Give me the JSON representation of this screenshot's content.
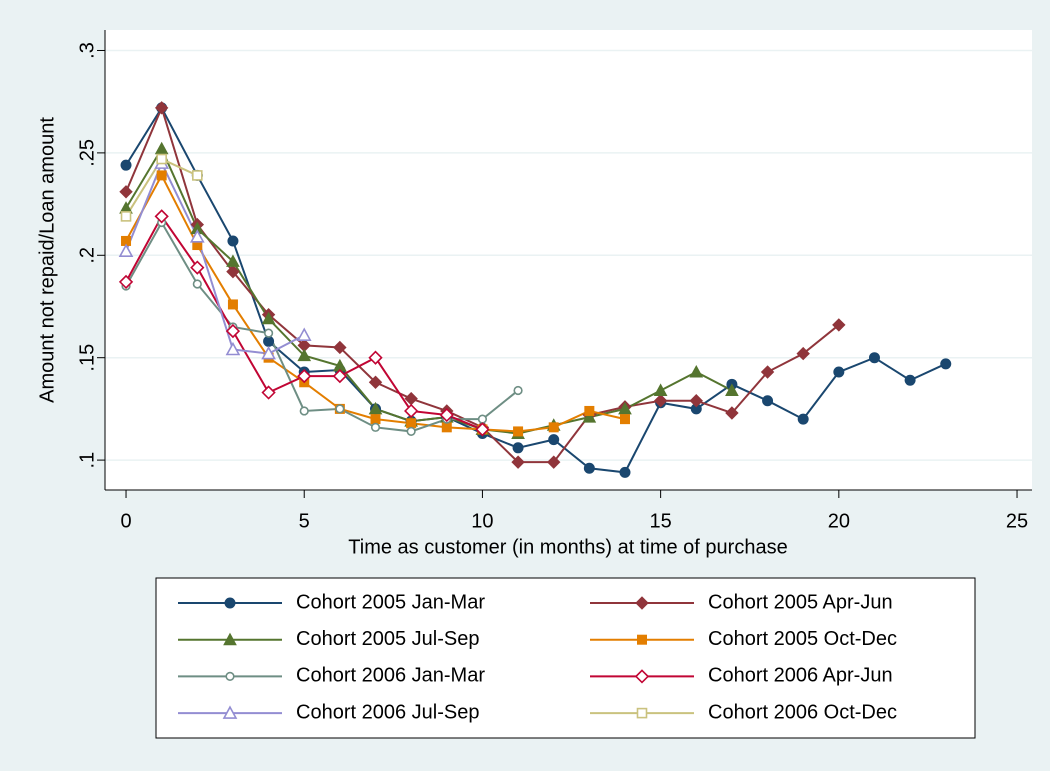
{
  "chart_data": {
    "type": "line",
    "x_label": "Time as customer (in months) at time of purchase",
    "y_label": "Amount not repaid/Loan amount",
    "x": [
      0,
      1,
      2,
      3,
      4,
      5,
      6,
      7,
      8,
      9,
      10,
      11,
      12,
      13,
      14,
      15,
      16,
      17,
      18,
      19,
      20,
      21,
      22,
      23
    ],
    "xlim": [
      -0.59,
      25.42
    ],
    "xticks": [
      0,
      5,
      10,
      15,
      20,
      25
    ],
    "ylim": [
      0.0854,
      0.31
    ],
    "yticks": [
      {
        "value": 0.1,
        "label": ".1"
      },
      {
        "value": 0.15,
        "label": ".15"
      },
      {
        "value": 0.2,
        "label": ".2"
      },
      {
        "value": 0.25,
        "label": ".25"
      },
      {
        "value": 0.3,
        "label": ".3"
      }
    ],
    "grid": true,
    "series": [
      {
        "name": "Cohort 2005 Jan-Mar",
        "color": "#1a476f",
        "marker": "circle",
        "hollow": false,
        "values": [
          0.244,
          0.272,
          0.239,
          0.207,
          0.158,
          0.143,
          0.144,
          0.125,
          0.119,
          0.121,
          0.113,
          0.106,
          0.11,
          0.096,
          0.094,
          0.128,
          0.125,
          0.137,
          0.129,
          0.12,
          0.143,
          0.15,
          0.139,
          0.147
        ]
      },
      {
        "name": "Cohort 2005 Apr-Jun",
        "color": "#90353b",
        "marker": "diamond",
        "hollow": false,
        "values": [
          0.231,
          0.272,
          0.215,
          0.192,
          0.171,
          0.156,
          0.155,
          0.138,
          0.13,
          0.124,
          0.116,
          0.099,
          0.099,
          0.122,
          0.126,
          0.129,
          0.129,
          0.123,
          0.143,
          0.152,
          0.166,
          null,
          null,
          null
        ]
      },
      {
        "name": "Cohort 2005 Jul-Sep",
        "color": "#55752f",
        "marker": "triangle",
        "hollow": false,
        "values": [
          0.223,
          0.252,
          0.213,
          0.197,
          0.169,
          0.151,
          0.146,
          0.125,
          0.119,
          0.121,
          0.115,
          0.113,
          0.117,
          0.121,
          0.125,
          0.134,
          0.143,
          0.134,
          null,
          null,
          null,
          null,
          null,
          null
        ]
      },
      {
        "name": "Cohort 2005 Oct-Dec",
        "color": "#e37e00",
        "marker": "square",
        "hollow": false,
        "values": [
          0.207,
          0.239,
          0.205,
          0.176,
          0.15,
          0.138,
          0.125,
          0.12,
          0.118,
          0.116,
          0.115,
          0.114,
          0.116,
          0.124,
          0.12,
          null,
          null,
          null,
          null,
          null,
          null,
          null,
          null,
          null
        ]
      },
      {
        "name": "Cohort 2006 Jan-Mar",
        "color": "#6e8e84",
        "marker": "circle",
        "hollow": true,
        "values": [
          0.185,
          0.216,
          0.186,
          0.165,
          0.162,
          0.124,
          0.125,
          0.116,
          0.114,
          0.12,
          0.12,
          0.134,
          null,
          null,
          null,
          null,
          null,
          null,
          null,
          null,
          null,
          null,
          null,
          null
        ]
      },
      {
        "name": "Cohort 2006 Apr-Jun",
        "color": "#c10534",
        "marker": "diamond",
        "hollow": true,
        "values": [
          0.187,
          0.219,
          0.194,
          0.163,
          0.133,
          0.141,
          0.141,
          0.15,
          0.124,
          0.122,
          0.115,
          null,
          null,
          null,
          null,
          null,
          null,
          null,
          null,
          null,
          null,
          null,
          null,
          null
        ]
      },
      {
        "name": "Cohort 2006 Jul-Sep",
        "color": "#938dd2",
        "marker": "triangle",
        "hollow": true,
        "values": [
          0.202,
          0.245,
          0.209,
          0.154,
          0.152,
          0.161,
          null,
          null,
          null,
          null,
          null,
          null,
          null,
          null,
          null,
          null,
          null,
          null,
          null,
          null,
          null,
          null,
          null,
          null
        ]
      },
      {
        "name": "Cohort 2006 Oct-Dec",
        "color": "#cac27e",
        "marker": "square",
        "hollow": true,
        "values": [
          0.219,
          0.247,
          0.239,
          null,
          null,
          null,
          null,
          null,
          null,
          null,
          null,
          null,
          null,
          null,
          null,
          null,
          null,
          null,
          null,
          null,
          null,
          null,
          null,
          null
        ]
      }
    ]
  }
}
